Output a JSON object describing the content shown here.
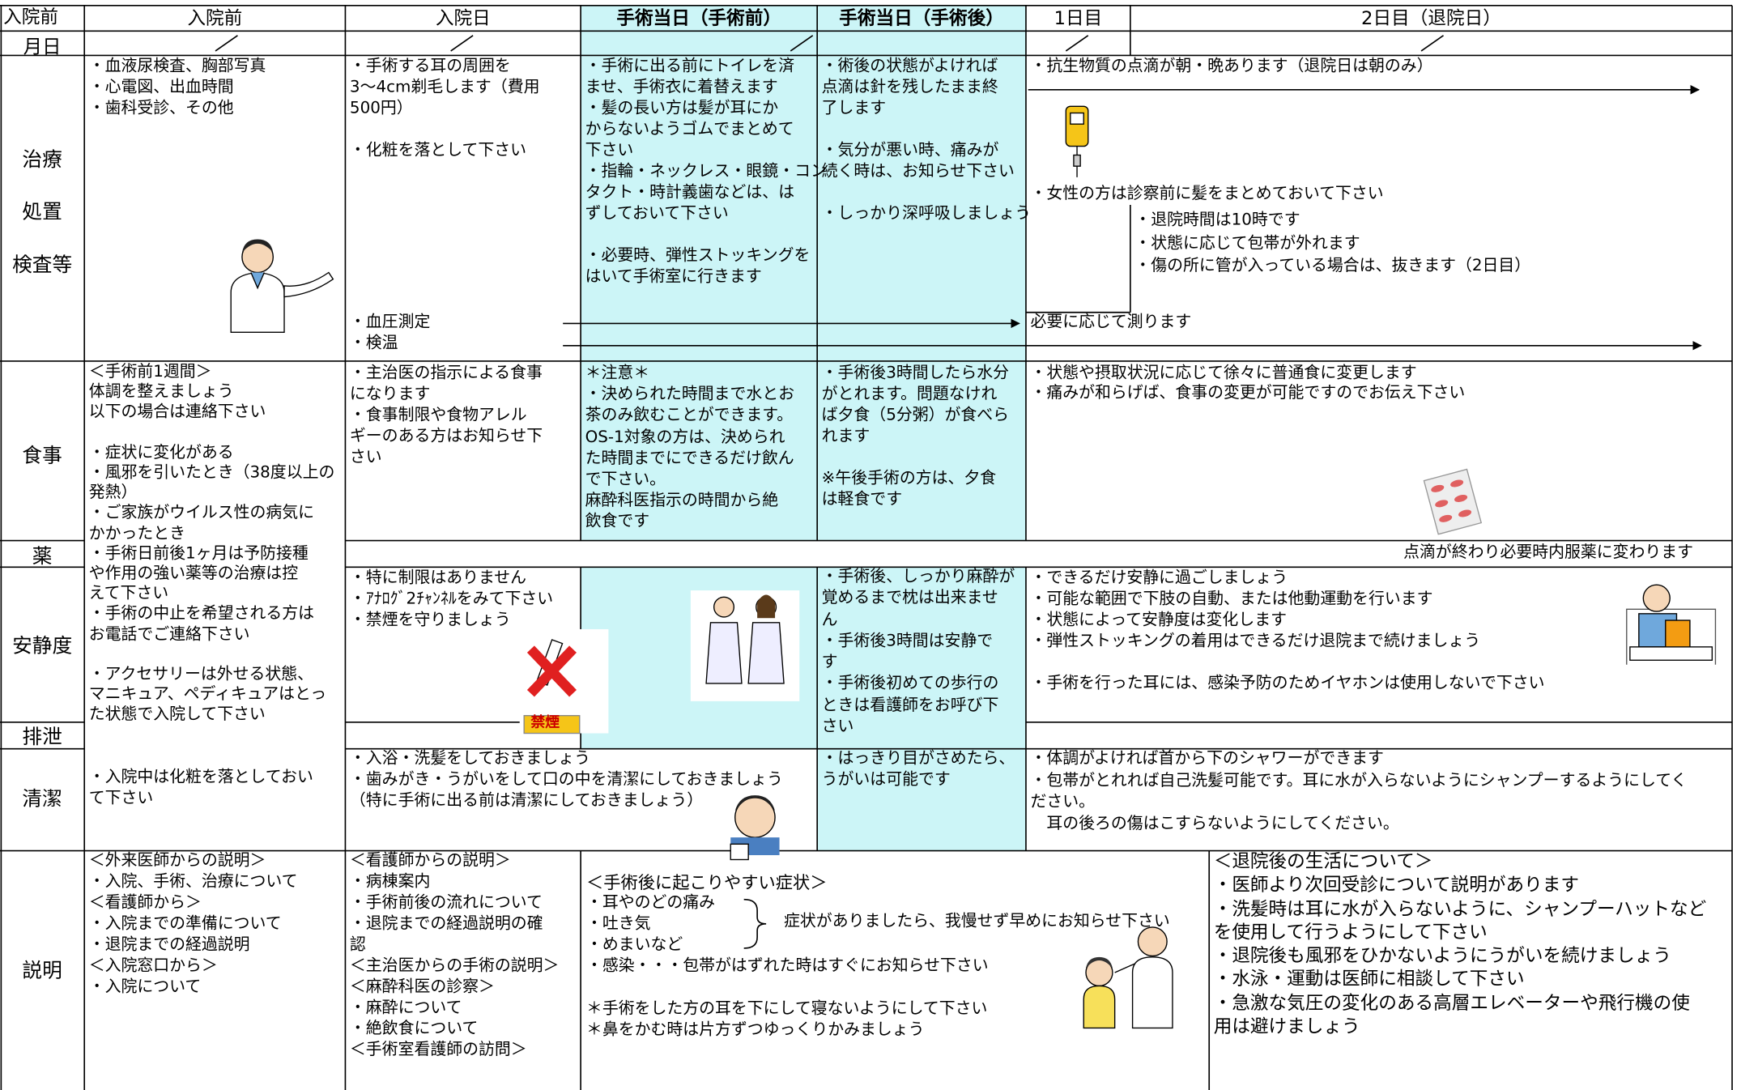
{
  "header": {
    "corner": "入院前",
    "columns": [
      "入院前",
      "入院日",
      "手術当日（手術前）",
      "手術当日（手術後）",
      "1日目",
      "2日目（退院日）"
    ]
  },
  "date_row": {
    "label": "月日"
  },
  "treatment": {
    "label": [
      "治療",
      "処置",
      "検査等"
    ],
    "pre_admission": "・血液尿検査、胸部写真\n・心電図、出血時間\n・歯科受診、その他",
    "admission_day": "・手術する耳の周囲を\n3～4cm剃毛します（費用\n500円）\n\n・化粧を落として下さい",
    "vitals": [
      "・血圧測定",
      "・検温"
    ],
    "before_surgery": "・手術に出る前にトイレを済\nませ、手術衣に着替えます\n・髪の長い方は髪が耳にか\nからないようゴムでまとめて\n下さい\n・指輪・ネックレス・眼鏡・コン\nタクト・時計義歯などは、は\nずしておいて下さい\n\n・必要時、弾性ストッキングを\nはいて手術室に行きます",
    "after_surgery": "・術後の状態がよければ\n点滴は針を残したまま終\n了します\n\n・気分が悪い時、痛みが\n続く時は、お知らせ下さい\n\n・しっかり深呼吸しましょう",
    "antibiotics": "・抗生物質の点滴が朝・晩あります（退院日は朝のみ）",
    "women_hair": "・女性の方は診察前に髪をまとめておいて下さい",
    "discharge_day": "・退院時間は10時です\n・状態に応じて包帯が外れます\n・傷の所に管が入っている場合は、抜きます（2日目）",
    "measure": "必要に応じて測ります"
  },
  "meal": {
    "label": "食事",
    "pre_admission": "＜手術前1週間＞\n体調を整えましょう\n以下の場合は連絡下さい\n\n・症状に変化がある\n・風邪を引いたとき（38度以上の\n発熱）\n・ご家族がウイルス性の病気に\nかかったとき\n・手術日前後1ヶ月は予防接種\nや作用の強い薬等の治療は控\nえて下さい\n・手術の中止を希望される方は\nお電話でご連絡下さい\n\n・アクセサリーは外せる状態、\nマニキュア、ペディキュアはとっ\nた状態で入院して下さい",
    "admission_day": "・主治医の指示による食事\nになります\n・食事制限や食物アレル\nギーのある方はお知らせ下\nさい",
    "before_surgery": "＊注意＊\n・決められた時間まで水とお\n茶のみ飲むことができます。\nOS-1対象の方は、決められ\nた時間までにできるだけ飲ん\nで下さい。\n麻酔科医指示の時間から絶\n飲食です",
    "after_surgery": "・手術後3時間したら水分\nがとれます。問題なけれ\nば夕食（5分粥）が食べら\nれます\n\n※午後手術の方は、夕食\nは軽食です",
    "post_op": "・状態や摂取状況に応じて徐々に普通食に変更します\n・痛みが和らげば、食事の変更が可能ですのでお伝え下さい"
  },
  "medicine": {
    "label": "薬",
    "post_op": "点滴が終わり必要時内服薬に変わります"
  },
  "rest": {
    "label": "安静度",
    "admission_day": "・特に制限はありません\n・ｱﾅﾛｸﾞ2ﾁｬﾝﾈﾙをみて下さい\n・禁煙を守りましょう",
    "no_smoking": "禁煙",
    "after_surgery": "・手術後、しっかり麻酔が\n覚めるまで枕は出来ませ\nん\n・手術後3時間は安静で\nす\n・手術後初めての歩行の\nときは看護師をお呼び下\nさい",
    "post_op": "・できるだけ安静に過ごしましょう\n・可能な範囲で下肢の自動、または他動運動を行います\n・状態によって安静度は変化します\n・弾性ストッキングの着用はできるだけ退院まで続けましょう\n\n・手術を行った耳には、感染予防のためイヤホンは使用しないで下さい"
  },
  "excretion": {
    "label": "排泄"
  },
  "hygiene": {
    "label": "清潔",
    "pre_admission": "・入院中は化粧を落としておい\nて下さい",
    "admission_day": "・入浴・洗髪をしておきましょう\n・歯みがき・うがいをして口の中を清潔にしておきましょう\n（特に手術に出る前は清潔にしておきましょう）",
    "after_surgery": "・はっきり目がさめたら、\nうがいは可能です",
    "post_op": "・体調がよければ首から下のシャワーができます\n・包帯がとれれば自己洗髪可能です。耳に水が入らないようにシャンプーするようにしてく\nださい。\n　耳の後ろの傷はこすらないようにしてください。"
  },
  "explanation": {
    "label": "説明",
    "pre_admission": "＜外来医師からの説明＞\n・入院、手術、治療について\n＜看護師から＞\n・入院までの準備について\n・退院までの経過説明\n＜入院窓口から＞\n・入院について",
    "admission_day": "＜看護師からの説明＞\n・病棟案内\n・手術前後の流れについて\n・退院までの経過説明の確\n認\n＜主治医からの手術の説明＞\n＜麻酔科医の診察＞\n・麻酔について\n・絶飲食について\n＜手術室看護師の訪問＞",
    "symptoms_title": "＜手術後に起こりやすい症状＞",
    "symptoms": "・耳やのどの痛み\n・吐き気\n・めまいなど",
    "symptoms_note": "症状がありましたら、我慢せず早めにお知らせ下さい",
    "infection": "・感染・・・包帯がはずれた時はすぐにお知らせ下さい",
    "cautions": "＊手術をした方の耳を下にして寝ないようにして下さい\n＊鼻をかむ時は片方ずつゆっくりかみましょう",
    "after_discharge": "＜退院後の生活について＞\n・医師より次回受診について説明があります\n・洗髪時は耳に水が入らないように、シャンプーハットなど\nを使用して行うようにして下さい\n・退院後も風邪をひかないようにうがいを続けましょう\n・水泳・運動は医師に相談して下さい\n・急激な気圧の変化のある高層エレベーターや飛行機の使\n用は避けましょう"
  }
}
